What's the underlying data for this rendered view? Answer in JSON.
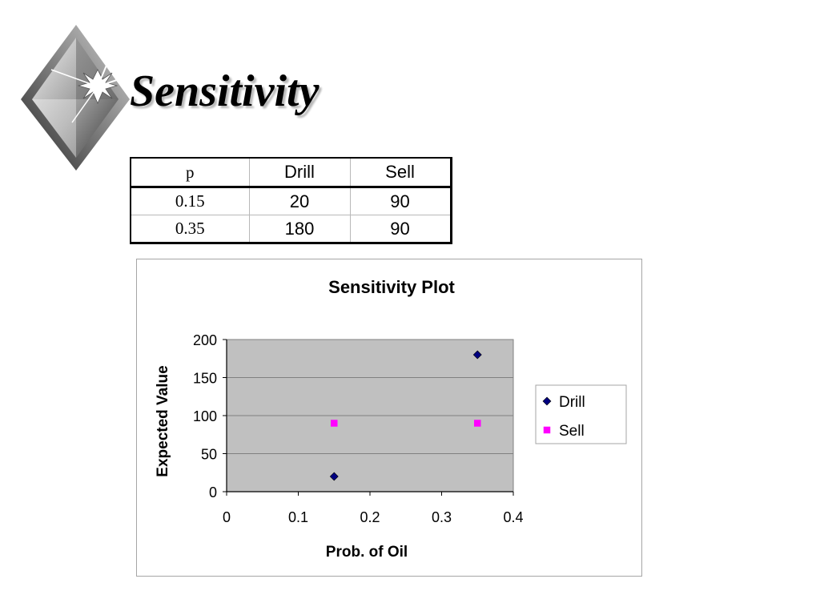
{
  "slide": {
    "title": "Sensitivity"
  },
  "table": {
    "headers": [
      "p",
      "Drill",
      "Sell"
    ],
    "rows": [
      [
        "0.15",
        "20",
        "90"
      ],
      [
        "0.35",
        "180",
        "90"
      ]
    ]
  },
  "chart_data": {
    "type": "scatter",
    "title": "Sensitivity Plot",
    "xlabel": "Prob. of Oil",
    "ylabel": "Expected Value",
    "xlim": [
      0,
      0.4
    ],
    "ylim": [
      0,
      200
    ],
    "xticks": [
      0,
      0.1,
      0.2,
      0.3,
      0.4
    ],
    "yticks": [
      0,
      50,
      100,
      150,
      200
    ],
    "grid": "horizontal",
    "legend": "right",
    "plot_background": "#c0c0c0",
    "series": [
      {
        "name": "Drill",
        "marker": "diamond",
        "color": "#000080",
        "x": [
          0.15,
          0.35
        ],
        "y": [
          20,
          180
        ]
      },
      {
        "name": "Sell",
        "marker": "square",
        "color": "#ff00ff",
        "x": [
          0.15,
          0.35
        ],
        "y": [
          90,
          90
        ]
      }
    ]
  }
}
